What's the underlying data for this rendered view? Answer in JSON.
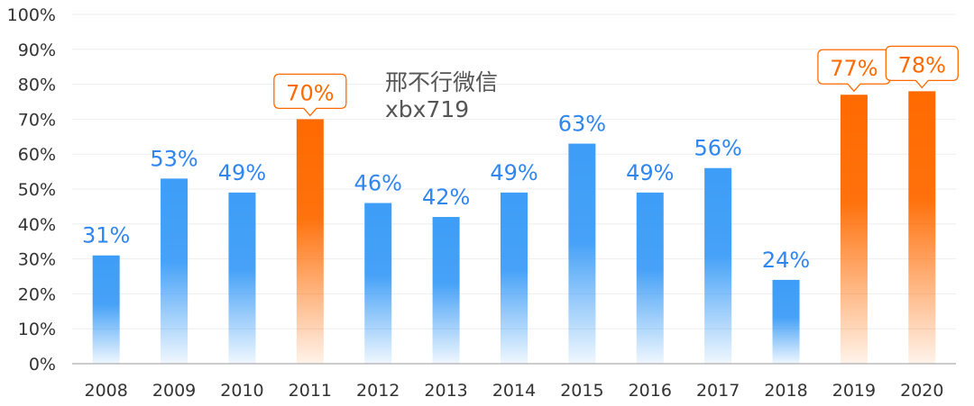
{
  "watermark": {
    "line1": "邢不行微信",
    "line2": "xbx719"
  },
  "chart_data": {
    "type": "bar",
    "title": "",
    "xlabel": "",
    "ylabel": "",
    "categories": [
      "2008",
      "2009",
      "2010",
      "2011",
      "2012",
      "2013",
      "2014",
      "2015",
      "2016",
      "2017",
      "2018",
      "2019",
      "2020"
    ],
    "values": [
      31,
      53,
      49,
      70,
      46,
      42,
      49,
      63,
      49,
      56,
      24,
      77,
      78
    ],
    "value_labels": [
      "31%",
      "53%",
      "49%",
      "70%",
      "46%",
      "42%",
      "49%",
      "63%",
      "49%",
      "56%",
      "24%",
      "77%",
      "78%"
    ],
    "highlighted": [
      false,
      false,
      false,
      true,
      false,
      false,
      false,
      false,
      false,
      false,
      false,
      true,
      true
    ],
    "ylim": [
      0,
      100
    ],
    "yticks": [
      0,
      10,
      20,
      30,
      40,
      50,
      60,
      70,
      80,
      90,
      100
    ],
    "ytick_labels": [
      "0%",
      "10%",
      "20%",
      "30%",
      "40%",
      "50%",
      "60%",
      "70%",
      "80%",
      "90%",
      "100%"
    ],
    "grid": true,
    "colors": {
      "normal": "#3d9df7",
      "highlight": "#ff6a00",
      "normal_label": "#2f86f0",
      "highlight_label": "#ff6a00",
      "grid": "#eeeeee",
      "axis": "#999999"
    }
  }
}
